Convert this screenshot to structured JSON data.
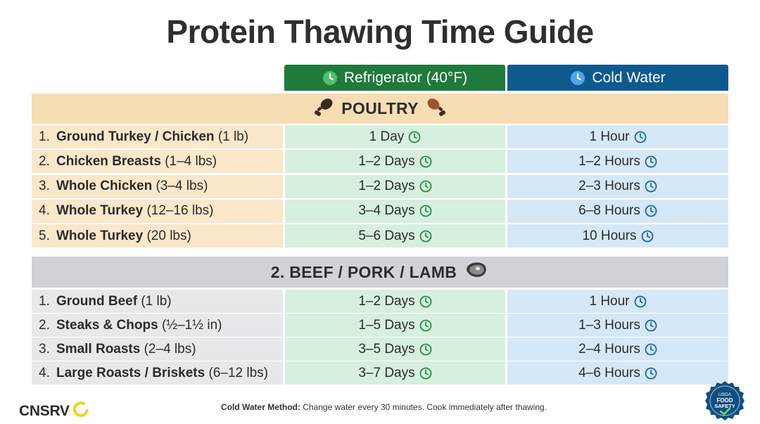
{
  "title": "Protein Thawing Time Guide",
  "columns": {
    "fridge": "Refrigerator (40°F)",
    "water": "Cold Water"
  },
  "sections": {
    "poultry": {
      "title": "POULTRY",
      "rows": [
        {
          "num": "1.",
          "name": "Ground Turkey / Chicken",
          "qty": "(1 lb)",
          "fridge": "1 Day",
          "water": "1 Hour"
        },
        {
          "num": "2.",
          "name": "Chicken Breasts",
          "qty": "(1–4 lbs)",
          "fridge": "1–2 Days",
          "water": "1–2 Hours"
        },
        {
          "num": "3.",
          "name": "Whole Chicken",
          "qty": "(3–4 lbs)",
          "fridge": "1–2 Days",
          "water": "2–3 Hours"
        },
        {
          "num": "4.",
          "name": "Whole Turkey",
          "qty": "(12–16 lbs)",
          "fridge": "3–4 Days",
          "water": "6–8 Hours"
        },
        {
          "num": "5.",
          "name": "Whole Turkey",
          "qty": "(20 lbs)",
          "fridge": "5–6 Days",
          "water": "10 Hours"
        }
      ]
    },
    "beef": {
      "title": "2. BEEF / PORK / LAMB",
      "rows": [
        {
          "num": "1.",
          "name": "Ground Beef",
          "qty": "(1 lb)",
          "fridge": "1–2 Days",
          "water": "1 Hour"
        },
        {
          "num": "2.",
          "name": "Steaks & Chops",
          "qty": "(½–1½ in)",
          "fridge": "1–5 Days",
          "water": "1–3 Hours"
        },
        {
          "num": "3.",
          "name": "Small Roasts",
          "qty": "(2–4 lbs)",
          "fridge": "3–5 Days",
          "water": "2–4 Hours"
        },
        {
          "num": "4.",
          "name": "Large Roasts / Briskets",
          "qty": "(6–12 lbs)",
          "fridge": "3–7 Days",
          "water": "4–6 Hours"
        }
      ]
    }
  },
  "footer": {
    "label": "Cold Water Method:",
    "text": "Change water every 30 minutes. Cook immediately after thawing."
  },
  "logo": "CNSRV",
  "seal": {
    "line1": "USDA",
    "line2": "FOOD",
    "line3": "SAFETY"
  },
  "colors": {
    "fridge": "#1f7a3b",
    "water": "#0e5a8f",
    "fridge_icon": "#2a8a4a",
    "water_icon": "#1b67a6",
    "logo_ring": "#f2d51b"
  }
}
